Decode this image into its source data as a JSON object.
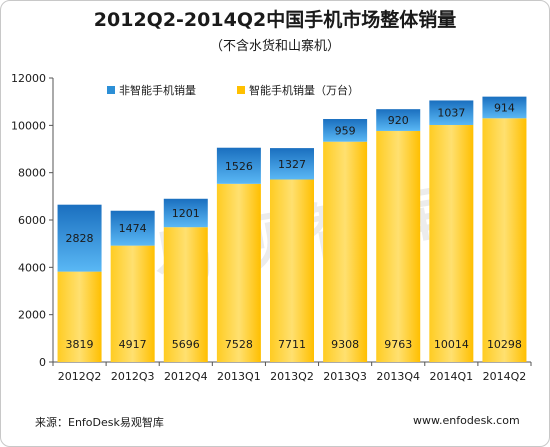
{
  "title": "2012Q2-2014Q2中国手机市场整体销量",
  "subtitle": "（不含水货和山寨机）",
  "source": "来源：EnfoDesk易观智库",
  "website": "www.enfodesk.com",
  "watermark": "易观智库",
  "colors": {
    "non_smart": "#2c8fd6",
    "non_smart_light": "#4aaef0",
    "smart": "#ffc000",
    "smart_light": "#ffd54a"
  },
  "chart_data": {
    "type": "bar",
    "stacked": true,
    "categories": [
      "2012Q2",
      "2012Q3",
      "2012Q4",
      "2013Q1",
      "2013Q2",
      "2013Q3",
      "2013Q4",
      "2014Q1",
      "2014Q2"
    ],
    "series": [
      {
        "name": "智能手机销量（万台）",
        "values": [
          3819,
          4917,
          5696,
          7528,
          7711,
          9308,
          9763,
          10014,
          10298
        ]
      },
      {
        "name": "非智能手机销量",
        "values": [
          2828,
          1474,
          1201,
          1526,
          1327,
          959,
          920,
          1037,
          914
        ]
      }
    ],
    "yticks": [
      0,
      2000,
      4000,
      6000,
      8000,
      10000,
      12000
    ],
    "ylim": [
      0,
      12000
    ],
    "grid": false,
    "legend_position": "top-left"
  }
}
